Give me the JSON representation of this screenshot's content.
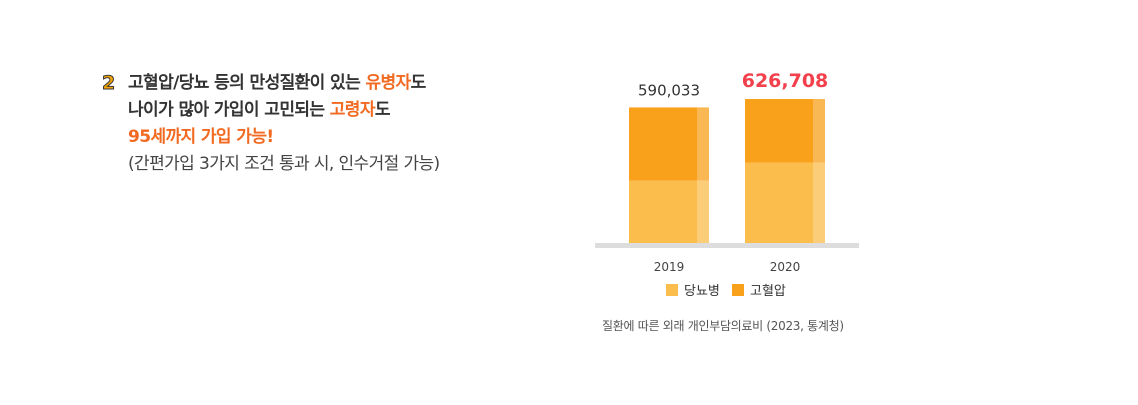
{
  "intro": {
    "badge": "2",
    "line1_prefix": "고혈압/당뇨 등의 만성질환이 있는 ",
    "line1_highlight": "유병자",
    "line1_suffix": "도",
    "line2_prefix": "나이가 많아 가입이 고민되는 ",
    "line2_highlight": "고령자",
    "line2_suffix": "도",
    "line3": "95세까지 가입 가능!",
    "line4": "(간편가입 3가지 조건 통과 시, 인수거절 가능)"
  },
  "chart_data": {
    "type": "bar",
    "stacked": true,
    "categories": [
      "2019",
      "2020"
    ],
    "totals": [
      590033,
      626708
    ],
    "total_labels": [
      "590,033",
      "626,708"
    ],
    "series": [
      {
        "name": "당뇨병",
        "color": "#fbbd4c",
        "values": [
          271000,
          350000
        ]
      },
      {
        "name": "고혈압",
        "color": "#f9a11b",
        "values": [
          319033,
          276708
        ]
      }
    ],
    "highlight_color": "#f2414c",
    "legend_position": "bottom"
  },
  "source": "질환에 따른 외래 개인부담의료비 (2023, 통계청)"
}
